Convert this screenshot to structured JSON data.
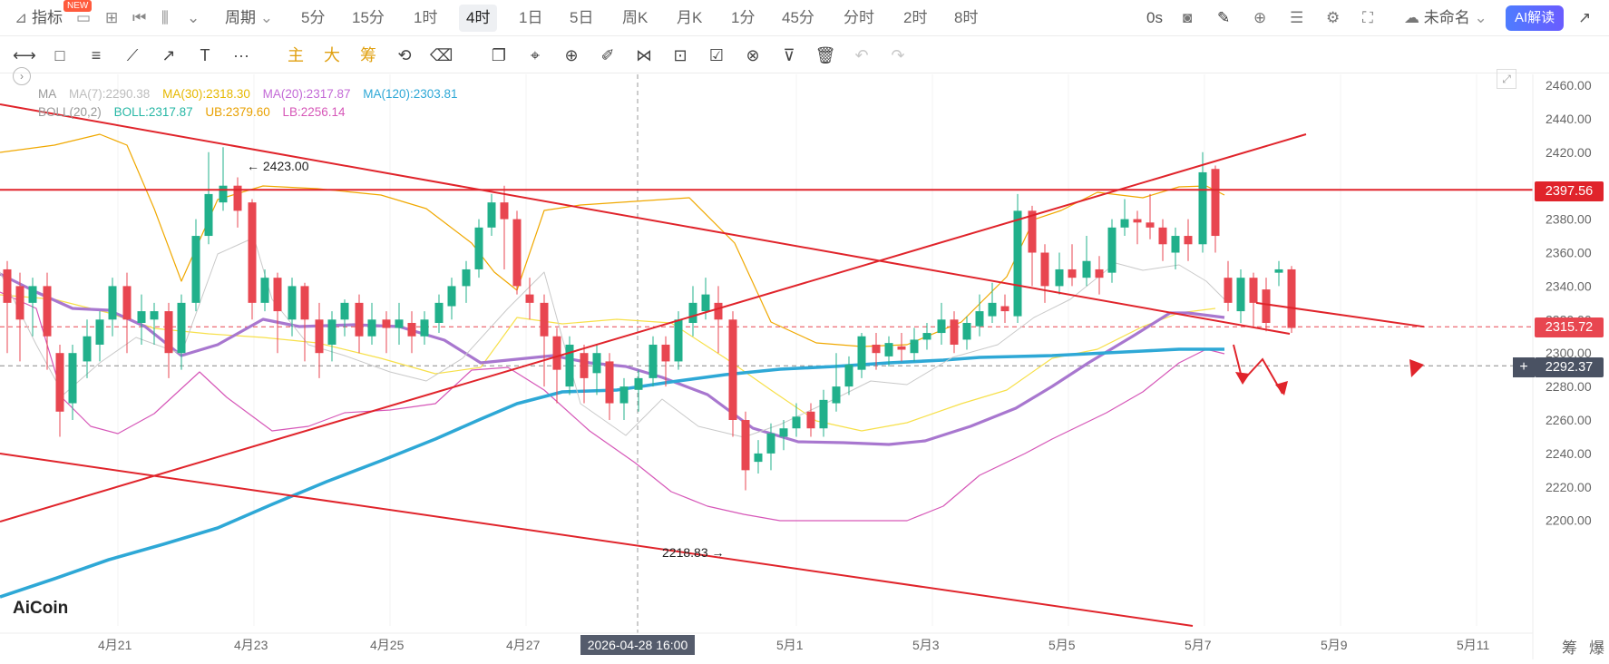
{
  "topbar": {
    "indicators_label": "指标",
    "new_badge": "NEW",
    "period_label": "周期",
    "periods": [
      "5分",
      "15分",
      "1时",
      "4时",
      "1日",
      "5日",
      "周K",
      "月K",
      "1分",
      "45分",
      "分时",
      "2时",
      "8时"
    ],
    "active_period": "4时",
    "countdown": "0s",
    "layout_name": "未命名",
    "ai_button": "AI解读"
  },
  "toolbar": {
    "tools": [
      "horizontal-line-tool",
      "rectangle-tool",
      "parallel-channel-tool",
      "trend-line-tool",
      "ray-tool",
      "text-tool",
      "more-tool",
      "main-chart-tool",
      "large-order-tool",
      "chips-tool",
      "replay-tool",
      "measure-tool",
      "copy-tool",
      "ruler-tool",
      "zoom-tool",
      "brush-tool",
      "mirror-tool",
      "lock-tool",
      "alert-tool",
      "magnet-tool",
      "filter-tool",
      "delete-tool",
      "undo-tool",
      "redo-tool"
    ],
    "main_label": "主",
    "large_label": "大",
    "chips_label": "筹",
    "more_label": "···"
  },
  "legend": {
    "ma": {
      "name": "MA",
      "ma7": "MA(7):2290.38",
      "ma30": "MA(30):2318.30",
      "ma20": "MA(20):2317.87",
      "ma120": "MA(120):2303.81",
      "colors": {
        "ma7": "#bdbdbd",
        "ma30": "#f3c300",
        "ma20": "#c36ad6",
        "ma120": "#2ea8d6"
      }
    },
    "boll": {
      "name": "BOLL(20,2)",
      "mid": "BOLL:2317.87",
      "ub": "UB:2379.60",
      "lb": "LB:2256.14",
      "colors": {
        "mid": "#27b7a5",
        "ub": "#f0a000",
        "lb": "#d657b8"
      }
    }
  },
  "annotations": {
    "high": "2423.00",
    "low": "2218.83"
  },
  "price_tags": {
    "resistance": "2397.56",
    "last": "2315.72",
    "cursor": "2292.37"
  },
  "crosshair_date": "2026-04-28 16:00",
  "logo": "AiCoin",
  "corner_labels": [
    "筹",
    "爆"
  ],
  "colors": {
    "up": "#21b08b",
    "down": "#e84650",
    "trend": "#e0242b"
  },
  "chart_data": {
    "type": "candlestick",
    "y_ticks": [
      2460,
      2440,
      2420,
      2400,
      2380,
      2360,
      2340,
      2320,
      2300,
      2280,
      2260,
      2240,
      2220,
      2200
    ],
    "x_ticks": [
      "4月21",
      "4月23",
      "4月25",
      "4月27",
      "5月1",
      "5月3",
      "5月5",
      "5月7",
      "5月9",
      "5月11"
    ],
    "ylim": [
      2188,
      2468
    ]
  }
}
